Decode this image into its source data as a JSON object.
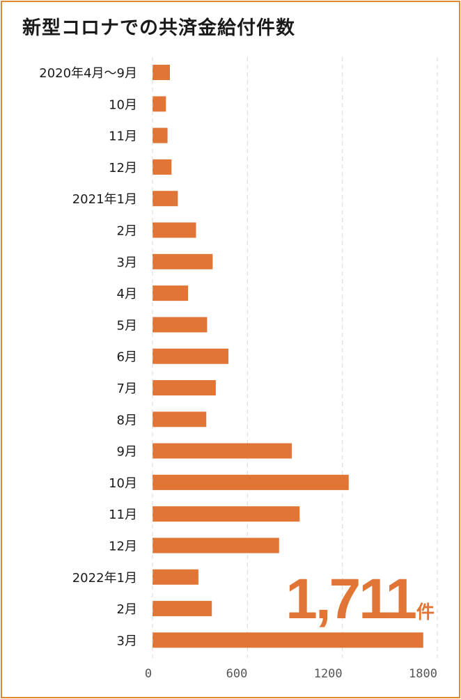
{
  "chart_data": {
    "type": "bar",
    "orientation": "horizontal",
    "title": "新型コロナでの共済金給付件数",
    "categories": [
      "2020年4月～9月",
      "10月",
      "11月",
      "12月",
      "2021年1月",
      "2月",
      "3月",
      "4月",
      "5月",
      "6月",
      "7月",
      "8月",
      "9月",
      "10月",
      "11月",
      "12月",
      "2022年1月",
      "2月",
      "3月"
    ],
    "values": [
      110,
      85,
      95,
      120,
      160,
      275,
      380,
      225,
      345,
      480,
      400,
      340,
      880,
      1240,
      930,
      800,
      290,
      375,
      1711
    ],
    "xlim": [
      0,
      1800
    ],
    "xticks": [
      0,
      600,
      1200,
      1800
    ],
    "grid": "vertical dashed",
    "bar_color": "#e07535",
    "highlight": {
      "value": "1,711",
      "unit": "件"
    }
  }
}
